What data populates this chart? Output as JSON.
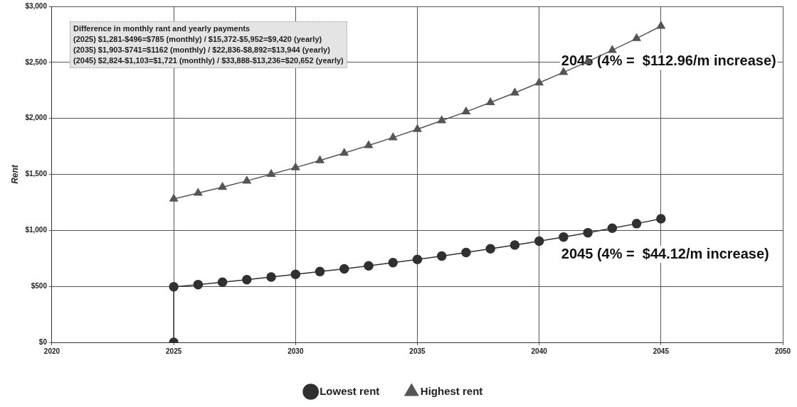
{
  "chart_data": {
    "type": "line",
    "ylabel": "Rent",
    "x": [
      2025,
      2026,
      2027,
      2028,
      2029,
      2030,
      2031,
      2032,
      2033,
      2034,
      2035,
      2036,
      2037,
      2038,
      2039,
      2040,
      2041,
      2042,
      2043,
      2044,
      2045
    ],
    "series": [
      {
        "name": "Lowest rent",
        "color": "#303030",
        "marker": "circle",
        "x": [
          2025,
          2025,
          2026,
          2027,
          2028,
          2029,
          2030,
          2031,
          2032,
          2033,
          2034,
          2035,
          2036,
          2037,
          2038,
          2039,
          2040,
          2041,
          2042,
          2043,
          2044,
          2045
        ],
        "values": [
          0,
          496,
          516,
          538,
          560,
          583,
          607,
          632,
          657,
          684,
          712,
          741,
          771,
          802,
          835,
          869,
          904,
          941,
          979,
          1019,
          1060,
          1103
        ]
      },
      {
        "name": "Highest rent",
        "color": "#555555",
        "marker": "triangle",
        "values": [
          1281,
          1333,
          1386,
          1442,
          1501,
          1561,
          1624,
          1690,
          1758,
          1829,
          1903,
          1980,
          2059,
          2142,
          2228,
          2318,
          2411,
          2508,
          2609,
          2714,
          2824
        ]
      }
    ],
    "xlim": [
      2020,
      2050
    ],
    "xticks": [
      2020,
      2025,
      2030,
      2035,
      2040,
      2045,
      2050
    ],
    "ylim": [
      0,
      3000
    ],
    "yticks": [
      {
        "value": 0,
        "label": "$0"
      },
      {
        "value": 500,
        "label": "$500"
      },
      {
        "value": 1000,
        "label": "$1,000"
      },
      {
        "value": 1500,
        "label": "$1,500"
      },
      {
        "value": 2000,
        "label": "$2,000"
      },
      {
        "value": 2500,
        "label": "$2,500"
      },
      {
        "value": 3000,
        "label": "$3,000"
      }
    ],
    "grid": true,
    "legend": "bottom",
    "line_style": "solid",
    "annotations": [
      "Difference in  monthly rant and yearly payments",
      "(2025) $1,281-$496=$785  (monthly) / $15,372-$5,952=$9,420  (yearly)",
      "(2035) $1,903-$741=$1162  (monthly) / $22,836-$8,892=$13,944 (yearly)",
      "(2045) $2,824-$1,103=$1,721  (monthly) / $33,888-$13,236=$20,652  (yearly)",
      {
        "text": "2045 (4% =  $112.96/m increase)",
        "x": 2045,
        "y": 2824
      },
      {
        "text": "2045 (4% =  $44.12/m increase)",
        "x": 2045,
        "y": 1103
      }
    ]
  }
}
